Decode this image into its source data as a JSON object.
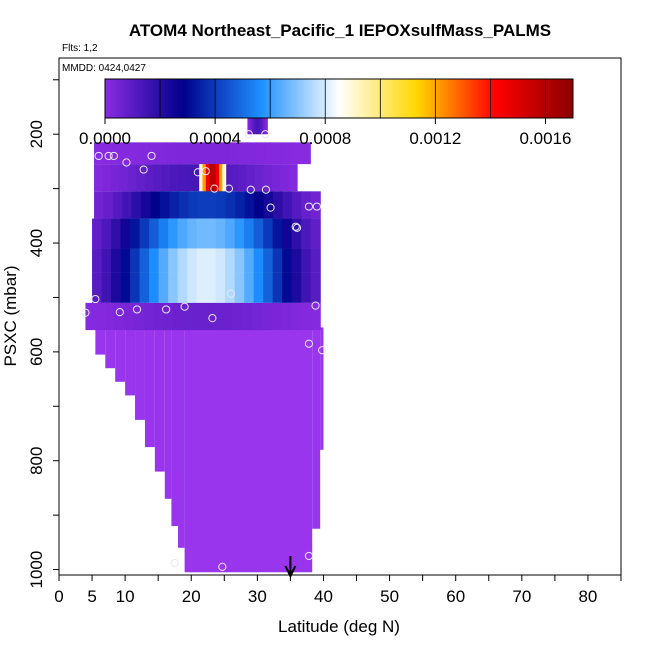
{
  "chart_data": {
    "type": "heatmap",
    "title": "ATOM4 Northeast_Pacific_1 IEPOXsulfMass_PALMS",
    "flights_label": "Flts: 1,2",
    "mmdd_label": "MMDD: 0424,0427",
    "xlabel": "Latitude (deg N)",
    "ylabel": "PSXC (mbar)",
    "xlim": [
      0,
      85
    ],
    "ylim": [
      1010,
      60
    ],
    "x_ticks": [
      0,
      5,
      10,
      20,
      30,
      40,
      50,
      60,
      70,
      80
    ],
    "y_ticks": [
      200,
      400,
      600,
      800,
      1000
    ],
    "colorbar": {
      "min": 0.0,
      "max": 0.0017,
      "ticks": [
        0.0,
        0.0004,
        0.0008,
        0.0012,
        0.0016
      ],
      "tick_labels": [
        "0.0000",
        "0.0004",
        "0.0008",
        "0.0012",
        "0.0016"
      ],
      "colors": [
        "#8a2be2",
        "#00008b",
        "#1e90ff",
        "#ffffff",
        "#ffd700",
        "#ff0000",
        "#8b0000"
      ]
    },
    "background_color": "#9a35ee",
    "arrow_latitude": 35,
    "layers": [
      {
        "p": [
          160,
          200
        ],
        "x0": 28.5,
        "x1": 31.5,
        "v": 0.0001
      },
      {
        "p": [
          215,
          255
        ],
        "x0": 5.3,
        "x1": 38.0,
        "v": 2e-05
      },
      {
        "p": [
          255,
          305
        ],
        "x0": 5.3,
        "x1": 36.0,
        "v": 0.0001,
        "hotspot": {
          "x0": 21.2,
          "x1": 25.2,
          "v": 0.0016
        }
      },
      {
        "p": [
          305,
          355
        ],
        "x0": 5.3,
        "x1": 39.5,
        "v": 0.0003
      },
      {
        "p": [
          355,
          410
        ],
        "x0": 5.0,
        "x1": 39.5,
        "v": 0.0005
      },
      {
        "p": [
          410,
          455
        ],
        "x0": 5.0,
        "x1": 39.5,
        "v": 0.0006
      },
      {
        "p": [
          455,
          510
        ],
        "x0": 5.0,
        "x1": 39.5,
        "v": 0.0006
      },
      {
        "p": [
          510,
          560
        ],
        "x0": 4.0,
        "x1": 39.5,
        "v": 5e-05
      }
    ],
    "column_bottoms": [
      {
        "x0": 5.5,
        "x1": 7.0,
        "p": 605
      },
      {
        "x0": 7.0,
        "x1": 8.5,
        "p": 630
      },
      {
        "x0": 8.5,
        "x1": 10.0,
        "p": 655
      },
      {
        "x0": 10.0,
        "x1": 11.5,
        "p": 680
      },
      {
        "x0": 11.5,
        "x1": 13.0,
        "p": 725
      },
      {
        "x0": 13.0,
        "x1": 14.5,
        "p": 775
      },
      {
        "x0": 14.5,
        "x1": 16.0,
        "p": 820
      },
      {
        "x0": 16.0,
        "x1": 17.0,
        "p": 870
      },
      {
        "x0": 17.0,
        "x1": 18.0,
        "p": 920
      },
      {
        "x0": 18.0,
        "x1": 19.0,
        "p": 960
      },
      {
        "x0": 19.0,
        "x1": 38.3,
        "p": 1005
      },
      {
        "x0": 38.3,
        "x1": 39.5,
        "p": 925
      },
      {
        "x0": 39.5,
        "x1": 40.0,
        "p": 780
      }
    ],
    "points": [
      {
        "lat": 28.7,
        "p": 200
      },
      {
        "lat": 31.2,
        "p": 200
      },
      {
        "lat": 6.0,
        "p": 240
      },
      {
        "lat": 7.5,
        "p": 240
      },
      {
        "lat": 8.3,
        "p": 240
      },
      {
        "lat": 10.2,
        "p": 252
      },
      {
        "lat": 12.8,
        "p": 265
      },
      {
        "lat": 14.0,
        "p": 240
      },
      {
        "lat": 21.0,
        "p": 270
      },
      {
        "lat": 22.2,
        "p": 268
      },
      {
        "lat": 23.5,
        "p": 300
      },
      {
        "lat": 25.7,
        "p": 300
      },
      {
        "lat": 29.0,
        "p": 302
      },
      {
        "lat": 31.3,
        "p": 302
      },
      {
        "lat": 32.0,
        "p": 335
      },
      {
        "lat": 35.8,
        "p": 370
      },
      {
        "lat": 36.0,
        "p": 372
      },
      {
        "lat": 37.8,
        "p": 333
      },
      {
        "lat": 39.0,
        "p": 333
      },
      {
        "lat": 5.5,
        "p": 503
      },
      {
        "lat": 4.0,
        "p": 528
      },
      {
        "lat": 9.2,
        "p": 527
      },
      {
        "lat": 11.8,
        "p": 522
      },
      {
        "lat": 16.2,
        "p": 522
      },
      {
        "lat": 19.0,
        "p": 517
      },
      {
        "lat": 23.2,
        "p": 538
      },
      {
        "lat": 26.0,
        "p": 493
      },
      {
        "lat": 38.8,
        "p": 515
      },
      {
        "lat": 37.8,
        "p": 585
      },
      {
        "lat": 39.8,
        "p": 597
      },
      {
        "lat": 17.5,
        "p": 988
      },
      {
        "lat": 24.7,
        "p": 995
      },
      {
        "lat": 37.8,
        "p": 975
      }
    ]
  }
}
